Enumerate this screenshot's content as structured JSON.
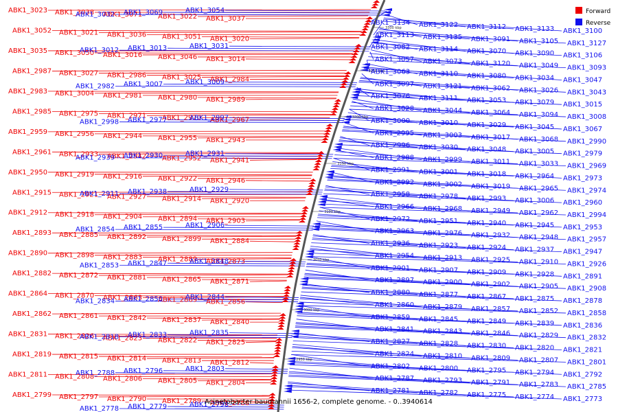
{
  "colors": {
    "forward": "#ee0000",
    "reverse": "#1010ee",
    "backbone": "#555555"
  },
  "legend": [
    {
      "label": "Forward",
      "color": "#ee0000"
    },
    {
      "label": "Reverse",
      "color": "#1010ee"
    }
  ],
  "caption": "Acinetobacter baumannii 1656-2, complete genome. - 0..3940614",
  "ticks": [
    "3300 kbp",
    "3250 kbp",
    "3200 kbp",
    "3150 kbp",
    "3100 kbp",
    "3050 kbp",
    "3000 kbp",
    "2950 kbp"
  ],
  "forward_genes": [
    "ABK1_3023",
    "ABK1_3038",
    "ABK1_3071",
    "ABK1_3022",
    "ABK1_3037",
    "ABK1_3052",
    "ABK1_3021",
    "ABK1_3036",
    "ABK1_3051",
    "ABK1_3020",
    "ABK1_3035",
    "ABK1_3050",
    "ABK1_3016",
    "ABK1_3046",
    "ABK1_3014",
    "ABK1_2987",
    "ABK1_3027",
    "ABK1_2986",
    "ABK1_3025",
    "ABK1_2984",
    "ABK1_2983",
    "ABK1_3004",
    "ABK1_2981",
    "ABK1_2980",
    "ABK1_2989",
    "ABK1_2985",
    "ABK1_2975",
    "ABK1_2971",
    "ABK1_2970",
    "ABK1_2967",
    "ABK1_2959",
    "ABK1_2956",
    "ABK1_2944",
    "ABK1_2955",
    "ABK1_2943",
    "ABK1_2961",
    "ABK1_2933",
    "ABK1_2942",
    "ABK1_2952",
    "ABK1_2941",
    "ABK1_2950",
    "ABK1_2919",
    "ABK1_2916",
    "ABK1_2922",
    "ABK1_2946",
    "ABK1_2915",
    "ABK1_2921",
    "ABK1_2927",
    "ABK1_2914",
    "ABK1_2920",
    "ABK1_2912",
    "ABK1_2918",
    "ABK1_2904",
    "ABK1_2894",
    "ABK1_2903",
    "ABK1_2893",
    "ABK1_2885",
    "ABK1_2892",
    "ABK1_2899",
    "ABK1_2884",
    "ABK1_2890",
    "ABK1_2898",
    "ABK1_2883",
    "ABK1_2889",
    "ABK1_2873",
    "ABK1_2882",
    "ABK1_2872",
    "ABK1_2881",
    "ABK1_2865",
    "ABK1_2871",
    "ABK1_2864",
    "ABK1_2870",
    "ABK1_2863",
    "ABK1_2869",
    "ABK1_2856",
    "ABK1_2862",
    "ABK1_2861",
    "ABK1_2842",
    "ABK1_2837",
    "ABK1_2840",
    "ABK1_2831",
    "ABK1_2826",
    "ABK1_2823",
    "ABK1_2822",
    "ABK1_2825",
    "ABK1_2819",
    "ABK1_2815",
    "ABK1_2814",
    "ABK1_2813",
    "ABK1_2812",
    "ABK1_2811",
    "ABK1_2808",
    "ABK1_2806",
    "ABK1_2805",
    "ABK1_2804",
    "ABK1_2799",
    "ABK1_2797",
    "ABK1_2790",
    "ABK1_2789",
    "ABK1_2786"
  ],
  "reverse_left_genes": [
    "ABK1_3054",
    "ABK1_3069",
    "ABK1_3032",
    "ABK1_3031",
    "ABK1_3013",
    "ABK1_3012",
    "ABK1_3009",
    "ABK1_3007",
    "ABK1_2982",
    "ABK1_2997",
    "ABK1_2977",
    "ABK1_2998",
    "ABK1_2931",
    "ABK1_2930",
    "ABK1_2939",
    "ABK1_2929",
    "ABK1_2938",
    "ABK1_2911",
    "ABK1_2906",
    "ABK1_2855",
    "ABK1_2854",
    "ABK1_2848",
    "ABK1_2847",
    "ABK1_2853",
    "ABK1_2844",
    "ABK1_2850",
    "ABK1_2834",
    "ABK1_2835",
    "ABK1_2833",
    "ABK1_2818",
    "ABK1_2803",
    "ABK1_2796",
    "ABK1_2788",
    "ABK1_2798",
    "ABK1_2779",
    "ABK1_2778"
  ],
  "reverse_right_genes": [
    "ABK1_3134",
    "ABK1_3122",
    "ABK1_3112",
    "ABK1_3133",
    "ABK1_3100",
    "ABK1_3113",
    "ABK1_3135",
    "ABK1_3091",
    "ABK1_3105",
    "ABK1_3127",
    "ABK1_3082",
    "ABK1_3114",
    "ABK1_3070",
    "ABK1_3090",
    "ABK1_3106",
    "ABK1_3057",
    "ABK1_3073",
    "ABK1_3120",
    "ABK1_3049",
    "ABK1_3093",
    "ABK1_3063",
    "ABK1_3110",
    "ABK1_3080",
    "ABK1_3034",
    "ABK1_3047",
    "ABK1_3097",
    "ABK1_3121",
    "ABK1_3062",
    "ABK1_3026",
    "ABK1_3043",
    "ABK1_3076",
    "ABK1_3111",
    "ABK1_3053",
    "ABK1_3079",
    "ABK1_3015",
    "ABK1_3028",
    "ABK1_3044",
    "ABK1_3064",
    "ABK1_3094",
    "ABK1_3008",
    "ABK1_3000",
    "ABK1_3010",
    "ABK1_3029",
    "ABK1_3045",
    "ABK1_3067",
    "ABK1_2995",
    "ABK1_3003",
    "ABK1_3017",
    "ABK1_3068",
    "ABK1_2990",
    "ABK1_2996",
    "ABK1_3030",
    "ABK1_3048",
    "ABK1_3005",
    "ABK1_2979",
    "ABK1_2988",
    "ABK1_2999",
    "ABK1_3011",
    "ABK1_3033",
    "ABK1_2969",
    "ABK1_2991",
    "ABK1_3001",
    "ABK1_3018",
    "ABK1_2964",
    "ABK1_2973",
    "ABK1_2992",
    "ABK1_3002",
    "ABK1_3019",
    "ABK1_2965",
    "ABK1_2974",
    "ABK1_2958",
    "ABK1_2978",
    "ABK1_2993",
    "ABK1_3006",
    "ABK1_2960",
    "ABK1_2966",
    "ABK1_2968",
    "ABK1_2949",
    "ABK1_2962",
    "ABK1_2994",
    "ABK1_2972",
    "ABK1_2951",
    "ABK1_2940",
    "ABK1_2945",
    "ABK1_2953",
    "ABK1_2963",
    "ABK1_2976",
    "ABK1_2932",
    "ABK1_2948",
    "ABK1_2957",
    "ABK1_2936",
    "ABK1_2923",
    "ABK1_2924",
    "ABK1_2937",
    "ABK1_2947",
    "ABK1_2954",
    "ABK1_2913",
    "ABK1_2925",
    "ABK1_2910",
    "ABK1_2926",
    "ABK1_2901",
    "ABK1_2907",
    "ABK1_2909",
    "ABK1_2928",
    "ABK1_2891",
    "ABK1_2897",
    "ABK1_2900",
    "ABK1_2902",
    "ABK1_2905",
    "ABK1_2908",
    "ABK1_2880",
    "ABK1_2877",
    "ABK1_2867",
    "ABK1_2875",
    "ABK1_2878",
    "ABK1_2860",
    "ABK1_2879",
    "ABK1_2857",
    "ABK1_2852",
    "ABK1_2858",
    "ABK1_2859",
    "ABK1_2845",
    "ABK1_2849",
    "ABK1_2839",
    "ABK1_2836",
    "ABK1_2841",
    "ABK1_2843",
    "ABK1_2846",
    "ABK1_2829",
    "ABK1_2832",
    "ABK1_2827",
    "ABK1_2828",
    "ABK1_2830",
    "ABK1_2820",
    "ABK1_2821",
    "ABK1_2824",
    "ABK1_2810",
    "ABK1_2809",
    "ABK1_2807",
    "ABK1_2801",
    "ABK1_2802",
    "ABK1_2800",
    "ABK1_2795",
    "ABK1_2794",
    "ABK1_2792",
    "ABK1_2787",
    "ABK1_2793",
    "ABK1_2791",
    "ABK1_2783",
    "ABK1_2785",
    "ABK1_2781",
    "ABK1_2782",
    "ABK1_2775",
    "ABK1_2774",
    "ABK1_2773"
  ]
}
